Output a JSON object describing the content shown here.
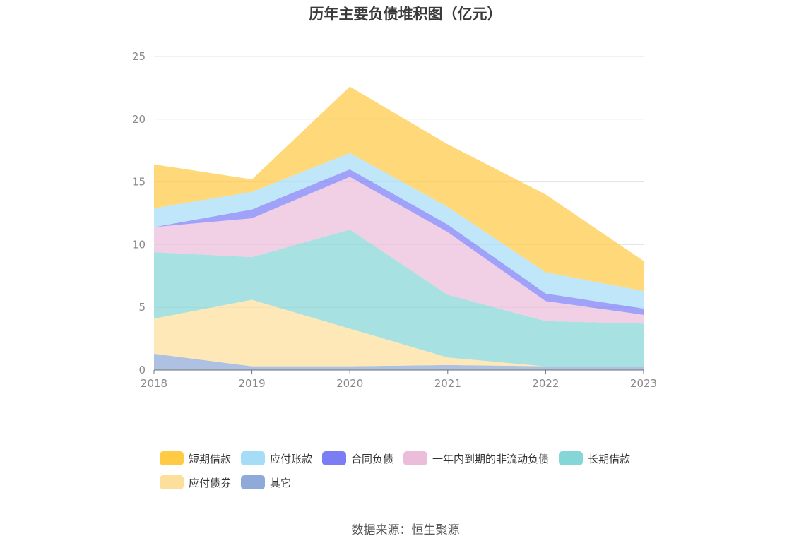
{
  "chart_data": {
    "type": "area",
    "stacked": true,
    "title": "历年主要负债堆积图（亿元）",
    "categories": [
      "2018",
      "2019",
      "2020",
      "2021",
      "2022",
      "2023"
    ],
    "ylim": [
      0,
      25
    ],
    "yticks": [
      0,
      5,
      10,
      15,
      20,
      25
    ],
    "grid": true,
    "legend_position": "bottom",
    "series": [
      {
        "name": "其它",
        "color": "#8fa9d8",
        "values": [
          1.3,
          0.3,
          0.3,
          0.4,
          0.3,
          0.3
        ]
      },
      {
        "name": "应付债券",
        "color": "#fddf9c",
        "values": [
          2.8,
          5.3,
          3.0,
          0.6,
          0.0,
          0.0
        ]
      },
      {
        "name": "长期借款",
        "color": "#85d6d6",
        "values": [
          5.3,
          3.4,
          7.9,
          5.0,
          3.6,
          3.4
        ]
      },
      {
        "name": "一年内到期的非流动负债",
        "color": "#ebbdda",
        "values": [
          2.0,
          3.1,
          4.2,
          5.0,
          1.6,
          0.7
        ]
      },
      {
        "name": "合同负债",
        "color": "#7b7df5",
        "values": [
          0.0,
          0.7,
          0.6,
          0.6,
          0.6,
          0.5
        ]
      },
      {
        "name": "应付账款",
        "color": "#a6ddf6",
        "values": [
          1.5,
          1.4,
          1.3,
          1.4,
          1.7,
          1.4
        ]
      },
      {
        "name": "短期借款",
        "color": "#ffcb45",
        "values": [
          3.5,
          1.0,
          5.3,
          5.0,
          6.2,
          2.4
        ]
      }
    ],
    "legend_order": [
      "短期借款",
      "应付账款",
      "合同负债",
      "一年内到期的非流动负债",
      "长期借款",
      "应付债券",
      "其它"
    ],
    "source": "数据来源：恒生聚源"
  }
}
